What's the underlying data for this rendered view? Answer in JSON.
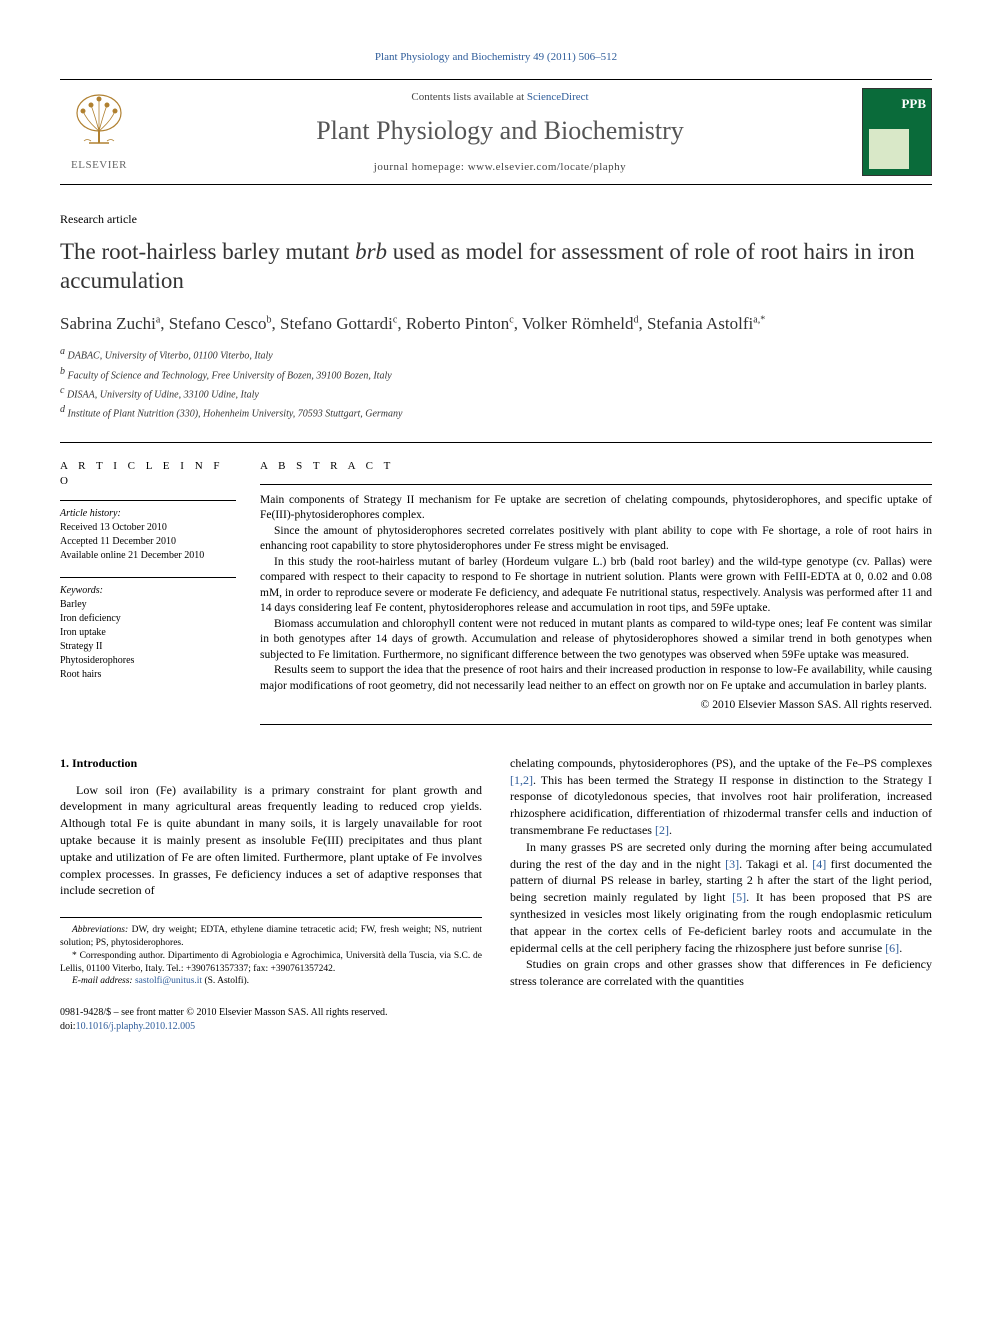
{
  "crumb": "Plant Physiology and Biochemistry 49 (2011) 506–512",
  "header": {
    "publisher": "ELSEVIER",
    "contents_prefix": "Contents lists available at ",
    "contents_link": "ScienceDirect",
    "journal": "Plant Physiology and Biochemistry",
    "homepage_prefix": "journal homepage: ",
    "homepage": "www.elsevier.com/locate/plaphy",
    "cover_label": "PPB"
  },
  "article_type": "Research article",
  "title_pre": "The root-hairless barley mutant ",
  "title_ital": "brb",
  "title_post": " used as model for assessment of role of root hairs in iron accumulation",
  "authors": [
    {
      "name": "Sabrina Zuchi",
      "aff": "a"
    },
    {
      "name": "Stefano Cesco",
      "aff": "b"
    },
    {
      "name": "Stefano Gottardi",
      "aff": "c"
    },
    {
      "name": "Roberto Pinton",
      "aff": "c"
    },
    {
      "name": "Volker Römheld",
      "aff": "d"
    },
    {
      "name": "Stefania Astolfi",
      "aff": "a,*"
    }
  ],
  "affiliations": [
    {
      "sup": "a",
      "text": "DABAC, University of Viterbo, 01100 Viterbo, Italy"
    },
    {
      "sup": "b",
      "text": "Faculty of Science and Technology, Free University of Bozen, 39100 Bozen, Italy"
    },
    {
      "sup": "c",
      "text": "DISAA, University of Udine, 33100 Udine, Italy"
    },
    {
      "sup": "d",
      "text": "Institute of Plant Nutrition (330), Hohenheim University, 70593 Stuttgart, Germany"
    }
  ],
  "info": {
    "head": "A R T I C L E   I N F O",
    "history_label": "Article history:",
    "received": "Received 13 October 2010",
    "accepted": "Accepted 11 December 2010",
    "online": "Available online 21 December 2010",
    "kw_label": "Keywords:",
    "keywords": [
      "Barley",
      "Iron deficiency",
      "Iron uptake",
      "Strategy II",
      "Phytosiderophores",
      "Root hairs"
    ]
  },
  "abstract": {
    "head": "A B S T R A C T",
    "p1": "Main components of Strategy II mechanism for Fe uptake are secretion of chelating compounds, phytosiderophores, and specific uptake of Fe(III)-phytosiderophores complex.",
    "p2": "Since the amount of phytosiderophores secreted correlates positively with plant ability to cope with Fe shortage, a role of root hairs in enhancing root capability to store phytosiderophores under Fe stress might be envisaged.",
    "p3": "In this study the root-hairless mutant of barley (Hordeum vulgare L.) brb (bald root barley) and the wild-type genotype (cv. Pallas) were compared with respect to their capacity to respond to Fe shortage in nutrient solution. Plants were grown with FeIII-EDTA at 0, 0.02 and 0.08 mM, in order to reproduce severe or moderate Fe deficiency, and adequate Fe nutritional status, respectively. Analysis was performed after 11 and 14 days considering leaf Fe content, phytosiderophores release and accumulation in root tips, and 59Fe uptake.",
    "p4": "Biomass accumulation and chlorophyll content were not reduced in mutant plants as compared to wild-type ones; leaf Fe content was similar in both genotypes after 14 days of growth. Accumulation and release of phytosiderophores showed a similar trend in both genotypes when subjected to Fe limitation. Furthermore, no significant difference between the two genotypes was observed when 59Fe uptake was measured.",
    "p5": "Results seem to support the idea that the presence of root hairs and their increased production in response to low-Fe availability, while causing major modifications of root geometry, did not necessarily lead neither to an effect on growth nor on Fe uptake and accumulation in barley plants.",
    "copyright": "© 2010 Elsevier Masson SAS. All rights reserved."
  },
  "body": {
    "sec1_head": "1. Introduction",
    "left_p1": "Low soil iron (Fe) availability is a primary constraint for plant growth and development in many agricultural areas frequently leading to reduced crop yields. Although total Fe is quite abundant in many soils, it is largely unavailable for root uptake because it is mainly present as insoluble Fe(III) precipitates and thus plant uptake and utilization of Fe are often limited. Furthermore, plant uptake of Fe involves complex processes. In grasses, Fe deficiency induces a set of adaptive responses that include secretion of",
    "right_p1_a": "chelating compounds, phytosiderophores (PS), and the uptake of the Fe–PS complexes ",
    "right_p1_ref1": "[1,2]",
    "right_p1_b": ". This has been termed the Strategy II response in distinction to the Strategy I response of dicotyledonous species, that involves root hair proliferation, increased rhizosphere acidification, differentiation of rhizodermal transfer cells and induction of transmembrane Fe reductases ",
    "right_p1_ref2": "[2]",
    "right_p1_c": ".",
    "right_p2_a": "In many grasses PS are secreted only during the morning after being accumulated during the rest of the day and in the night ",
    "right_p2_ref1": "[3]",
    "right_p2_b": ". Takagi et al. ",
    "right_p2_ref2": "[4]",
    "right_p2_c": " first documented the pattern of diurnal PS release in barley, starting 2 h after the start of the light period, being secretion mainly regulated by light ",
    "right_p2_ref3": "[5]",
    "right_p2_d": ". It has been proposed that PS are synthesized in vesicles most likely originating from the rough endoplasmic reticulum that appear in the cortex cells of Fe-deficient barley roots and accumulate in the epidermal cells at the cell periphery facing the rhizosphere just before sunrise ",
    "right_p2_ref4": "[6]",
    "right_p2_e": ".",
    "right_p3": "Studies on grain crops and other grasses show that differences in Fe deficiency stress tolerance are correlated with the quantities"
  },
  "footnotes": {
    "abbr_label": "Abbreviations:",
    "abbr": " DW, dry weight; EDTA, ethylene diamine tetracetic acid; FW, fresh weight; NS, nutrient solution; PS, phytosiderophores.",
    "corr": "* Corresponding author. Dipartimento di Agrobiologia e Agrochimica, Università della Tuscia, via S.C. de Lellis, 01100 Viterbo, Italy. Tel.: +390761357337; fax: +390761357242.",
    "email_label": "E-mail address: ",
    "email": "sastolfi@unitus.it",
    "email_who": " (S. Astolfi)."
  },
  "bottom": {
    "line1": "0981-9428/$ – see front matter © 2010 Elsevier Masson SAS. All rights reserved.",
    "doi_prefix": "doi:",
    "doi": "10.1016/j.plaphy.2010.12.005"
  },
  "colors": {
    "link": "#2e5c9a",
    "cover_bg": "#0a6b3a",
    "cover_inner": "#d9e8c8",
    "text": "#000",
    "title_text": "#333",
    "journal_name": "#555"
  }
}
